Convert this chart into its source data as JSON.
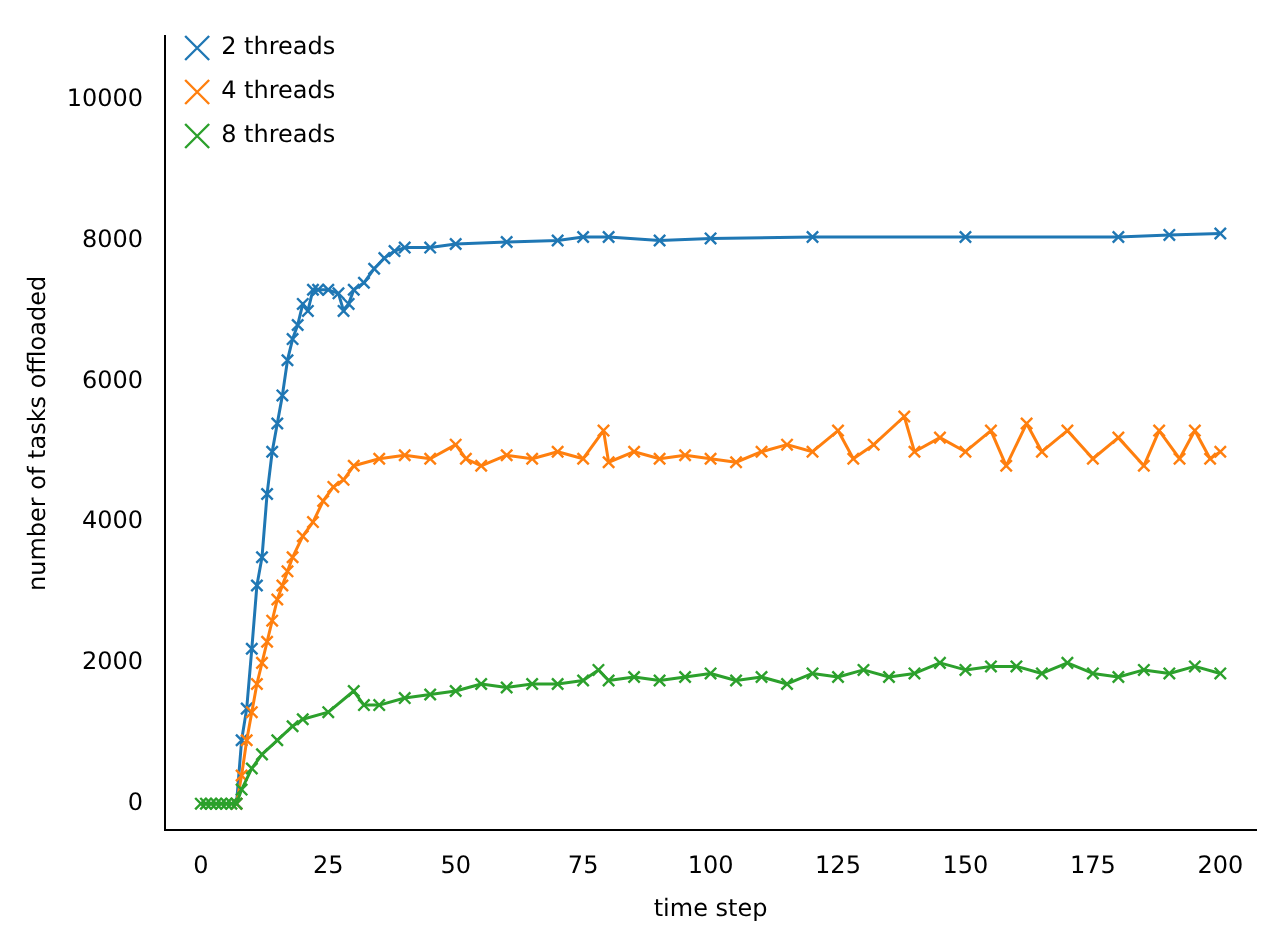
{
  "chart_data": {
    "type": "line",
    "xlabel": "time step",
    "ylabel": "number of tasks offloaded",
    "xlim": [
      -7,
      207
    ],
    "ylim": [
      -380,
      10900
    ],
    "xticks": [
      0,
      25,
      50,
      75,
      100,
      125,
      150,
      175,
      200
    ],
    "yticks": [
      0,
      2000,
      4000,
      6000,
      8000,
      10000
    ],
    "grid": false,
    "legend": "top left",
    "marker": "cross",
    "line_style": "solid",
    "series": [
      {
        "name": "2 threads",
        "color": "#1f77b4",
        "x": [
          7,
          8,
          9,
          10,
          11,
          12,
          13,
          14,
          15,
          16,
          17,
          18,
          19,
          20,
          21,
          22,
          23,
          25,
          27,
          28,
          29,
          30,
          32,
          34,
          36,
          38,
          40,
          45,
          50,
          60,
          70,
          75,
          80,
          90,
          100,
          120,
          150,
          180,
          190,
          200
        ],
        "values": [
          0,
          900,
          1350,
          2200,
          3100,
          3500,
          4400,
          5000,
          5400,
          5800,
          6300,
          6600,
          6800,
          7100,
          7000,
          7300,
          7300,
          7300,
          7250,
          7000,
          7100,
          7300,
          7400,
          7600,
          7750,
          7850,
          7900,
          7900,
          7950,
          7980,
          8000,
          8050,
          8050,
          8000,
          8030,
          8050,
          8050,
          8050,
          8080,
          8100
        ]
      },
      {
        "name": "4 threads",
        "color": "#ff7f0e",
        "x": [
          7,
          8,
          9,
          10,
          11,
          12,
          13,
          14,
          15,
          16,
          17,
          18,
          20,
          22,
          24,
          26,
          28,
          30,
          35,
          40,
          45,
          50,
          52,
          55,
          60,
          65,
          70,
          75,
          79,
          80,
          85,
          90,
          95,
          100,
          105,
          110,
          115,
          120,
          125,
          128,
          132,
          138,
          140,
          145,
          150,
          155,
          158,
          162,
          165,
          170,
          175,
          180,
          185,
          188,
          192,
          195,
          198,
          200
        ],
        "values": [
          0,
          400,
          900,
          1300,
          1700,
          2000,
          2300,
          2600,
          2900,
          3100,
          3300,
          3500,
          3800,
          4000,
          4300,
          4500,
          4600,
          4800,
          4900,
          4950,
          4900,
          5100,
          4900,
          4800,
          4950,
          4900,
          5000,
          4900,
          5300,
          4850,
          5000,
          4900,
          4950,
          4900,
          4850,
          5000,
          5100,
          5000,
          5300,
          4900,
          5100,
          5500,
          5000,
          5200,
          5000,
          5300,
          4800,
          5400,
          5000,
          5300,
          4900,
          5200,
          4800,
          5300,
          4900,
          5300,
          4900,
          5000
        ]
      },
      {
        "name": "8 threads",
        "color": "#2ca02c",
        "x": [
          0,
          1,
          2,
          3,
          4,
          5,
          6,
          7,
          8,
          10,
          12,
          15,
          18,
          20,
          25,
          30,
          32,
          35,
          40,
          45,
          50,
          55,
          60,
          65,
          70,
          75,
          78,
          80,
          85,
          90,
          95,
          100,
          105,
          110,
          115,
          120,
          125,
          130,
          135,
          140,
          145,
          150,
          155,
          160,
          165,
          170,
          175,
          180,
          185,
          190,
          195,
          200
        ],
        "values": [
          0,
          0,
          0,
          0,
          0,
          0,
          0,
          0,
          200,
          500,
          700,
          900,
          1100,
          1200,
          1300,
          1600,
          1400,
          1400,
          1500,
          1550,
          1600,
          1700,
          1650,
          1700,
          1700,
          1750,
          1900,
          1750,
          1800,
          1750,
          1800,
          1850,
          1750,
          1800,
          1700,
          1850,
          1800,
          1900,
          1800,
          1850,
          2000,
          1900,
          1950,
          1950,
          1850,
          2000,
          1850,
          1800,
          1900,
          1850,
          1950,
          1850
        ]
      }
    ]
  }
}
